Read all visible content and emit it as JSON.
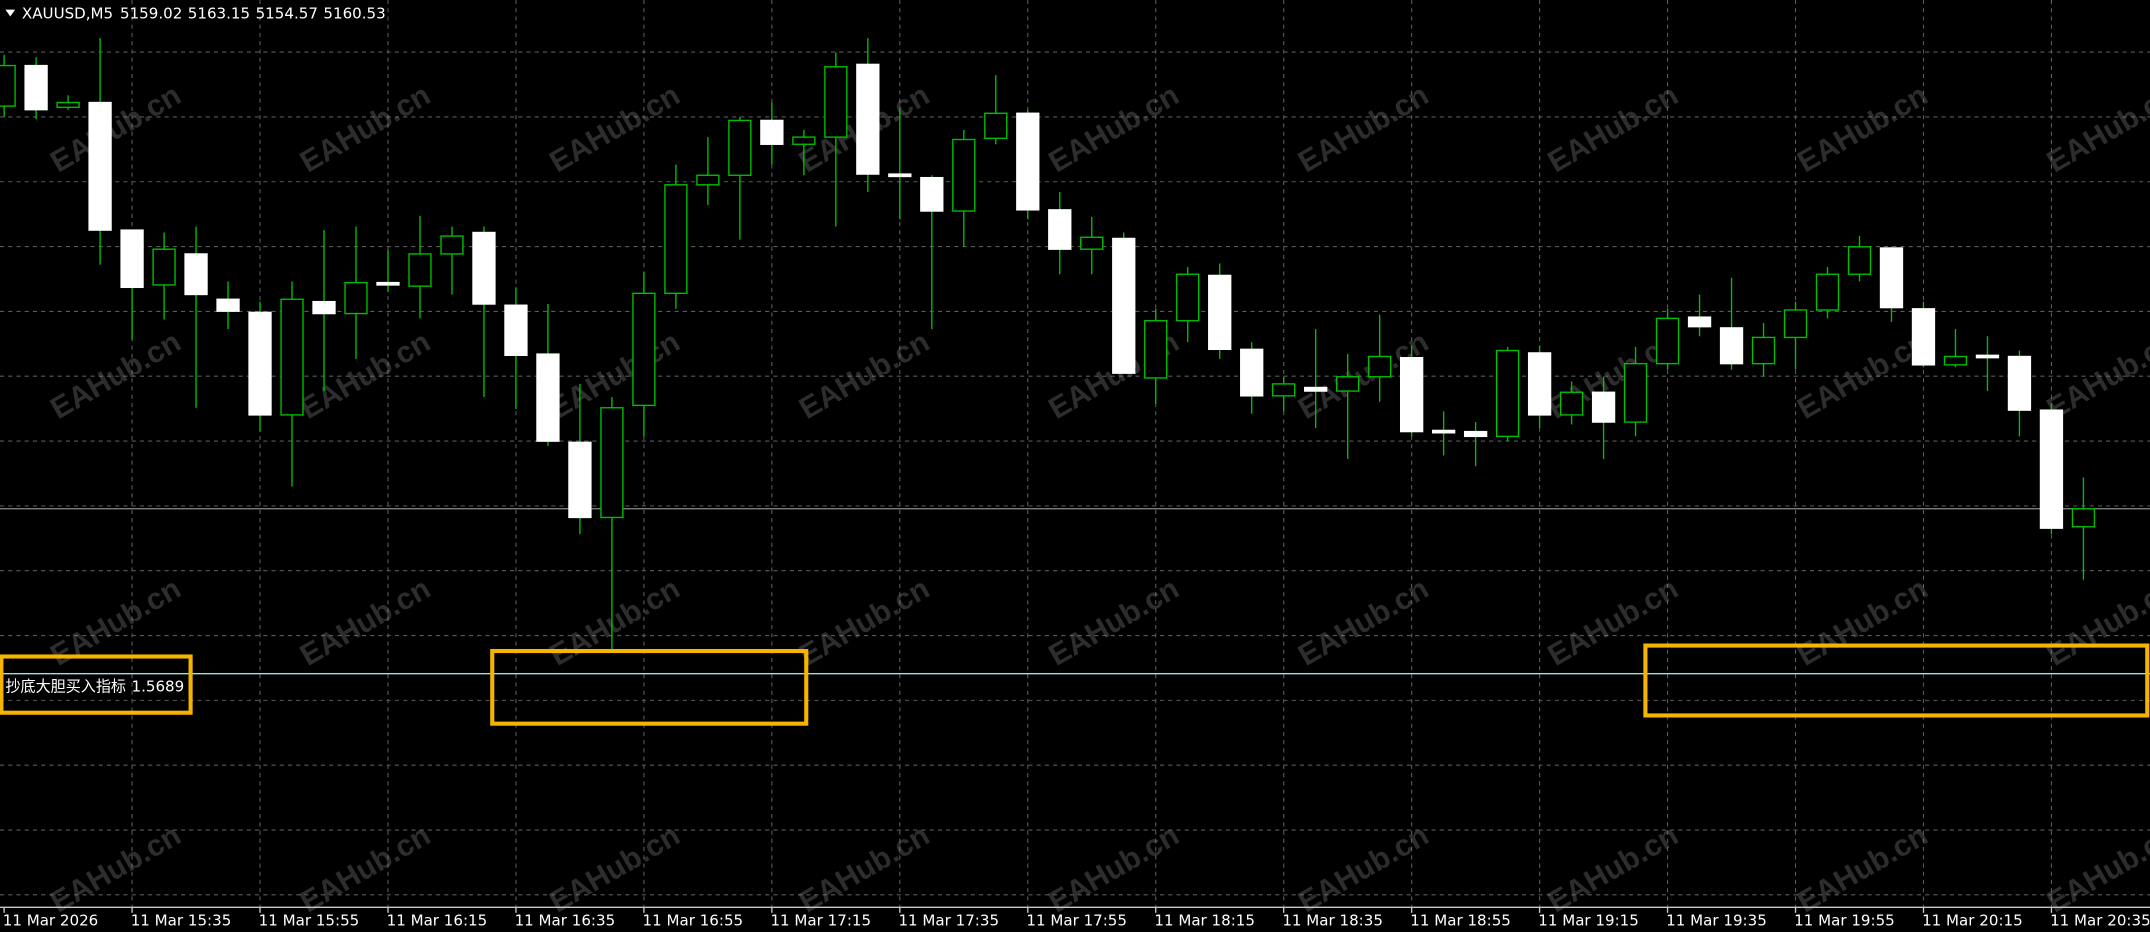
{
  "chart_data": {
    "type": "candlestick",
    "symbol": "XAUUSD,M5",
    "watermark": "EAHub.cn",
    "indicator": {
      "name": "抄底大胆买入指标",
      "value": 1.5689
    },
    "level_line": 5146.7,
    "level_color": "#8fe6e6",
    "price_line_color": "#8a8a8a",
    "up_color": "#00c000",
    "down_color": "#ffffff",
    "grid": true,
    "ylim": [
      5127.1,
      5203.2
    ],
    "categories": [
      "11 Mar 2026",
      null,
      null,
      null,
      "11 Mar 15:35",
      null,
      null,
      null,
      "11 Mar 15:55",
      null,
      null,
      null,
      "11 Mar 16:15",
      null,
      null,
      null,
      "11 Mar 16:35",
      null,
      null,
      null,
      "11 Mar 16:55",
      null,
      null,
      null,
      "11 Mar 17:15",
      null,
      null,
      null,
      "11 Mar 17:35",
      null,
      null,
      null,
      "11 Mar 17:55",
      null,
      null,
      null,
      "11 Mar 18:15",
      null,
      null,
      null,
      "11 Mar 18:35",
      null,
      null,
      null,
      "11 Mar 18:55",
      null,
      null,
      null,
      "11 Mar 19:15",
      null,
      null,
      null,
      "11 Mar 19:35",
      null,
      null,
      null,
      "11 Mar 19:55",
      null,
      null,
      null,
      "11 Mar 20:15",
      null,
      null,
      null,
      "11 Mar 20:35",
      null
    ],
    "open": [
      5194.3,
      5197.7,
      5194.2,
      5194.6,
      5183.9,
      5179.3,
      5181.9,
      5178.1,
      5177.0,
      5168.4,
      5177.9,
      5176.9,
      5179.5,
      5179.2,
      5181.9,
      5183.7,
      5177.6,
      5173.5,
      5166.1,
      5159.8,
      5169.2,
      5178.6,
      5187.7,
      5188.5,
      5193.1,
      5191.1,
      5191.7,
      5197.8,
      5188.6,
      5188.3,
      5185.5,
      5191.6,
      5193.7,
      5185.6,
      5182.3,
      5183.2,
      5171.5,
      5176.3,
      5180.1,
      5173.9,
      5170.0,
      5170.7,
      5170.4,
      5171.6,
      5173.2,
      5167.1,
      5167.0,
      5166.6,
      5173.6,
      5168.4,
      5170.3,
      5167.8,
      5172.7,
      5176.6,
      5175.7,
      5172.7,
      5174.9,
      5177.2,
      5180.2,
      5182.4,
      5177.3,
      5172.6,
      5173.4,
      5173.3,
      5168.8,
      5159.02
    ],
    "high": [
      5198.6,
      5198.4,
      5195.2,
      5200.0,
      5183.9,
      5183.7,
      5184.2,
      5179.6,
      5177.9,
      5179.6,
      5183.9,
      5184.2,
      5182.2,
      5185.1,
      5184.2,
      5184.2,
      5179.1,
      5177.7,
      5171.0,
      5169.9,
      5180.4,
      5189.4,
      5191.7,
      5193.4,
      5194.6,
      5192.3,
      5198.8,
      5200.0,
      5194.0,
      5188.5,
      5192.3,
      5196.9,
      5194.0,
      5187.1,
      5185.0,
      5183.7,
      5177.3,
      5180.8,
      5181.1,
      5174.5,
      5171.6,
      5175.6,
      5173.5,
      5176.8,
      5174.2,
      5168.7,
      5167.8,
      5174.1,
      5174.2,
      5171.2,
      5171.6,
      5174.1,
      5177.3,
      5178.5,
      5179.9,
      5176.1,
      5177.9,
      5180.8,
      5183.4,
      5182.5,
      5177.9,
      5175.6,
      5175.0,
      5173.8,
      5169.3,
      5163.15
    ],
    "low": [
      5193.4,
      5193.2,
      5194.0,
      5181.0,
      5174.7,
      5176.4,
      5169.0,
      5175.6,
      5167.0,
      5162.4,
      5170.4,
      5173.1,
      5178.7,
      5176.5,
      5178.5,
      5169.9,
      5168.9,
      5165.8,
      5158.4,
      5148.6,
      5166.6,
      5177.3,
      5186.0,
      5183.1,
      5189.4,
      5188.5,
      5184.2,
      5187.1,
      5184.8,
      5175.6,
      5182.5,
      5191.1,
      5184.8,
      5180.2,
      5180.2,
      5171.9,
      5169.3,
      5174.5,
      5173.1,
      5168.5,
      5168.7,
      5167.3,
      5164.7,
      5169.5,
      5166.6,
      5165.0,
      5164.1,
      5166.2,
      5167.3,
      5167.6,
      5164.7,
      5166.6,
      5172.2,
      5175.0,
      5172.2,
      5171.6,
      5172.2,
      5176.5,
      5179.6,
      5176.2,
      5172.4,
      5172.4,
      5170.4,
      5166.6,
      5158.4,
      5154.57
    ],
    "close": [
      5197.7,
      5194.0,
      5194.6,
      5183.9,
      5179.1,
      5182.3,
      5178.5,
      5177.1,
      5168.4,
      5178.1,
      5176.9,
      5179.5,
      5179.3,
      5181.9,
      5183.4,
      5177.7,
      5173.4,
      5166.2,
      5159.8,
      5169.0,
      5178.6,
      5187.7,
      5188.5,
      5193.1,
      5191.1,
      5191.7,
      5197.6,
      5188.6,
      5188.4,
      5185.5,
      5191.5,
      5193.7,
      5185.6,
      5182.3,
      5183.3,
      5171.9,
      5176.3,
      5180.2,
      5173.9,
      5170.0,
      5171.0,
      5170.4,
      5171.6,
      5173.3,
      5167.0,
      5166.9,
      5166.6,
      5173.8,
      5168.4,
      5170.3,
      5167.8,
      5172.7,
      5176.5,
      5175.8,
      5172.7,
      5174.9,
      5177.2,
      5180.2,
      5182.5,
      5177.4,
      5172.6,
      5173.3,
      5173.2,
      5168.8,
      5158.9,
      5160.53
    ]
  }
}
